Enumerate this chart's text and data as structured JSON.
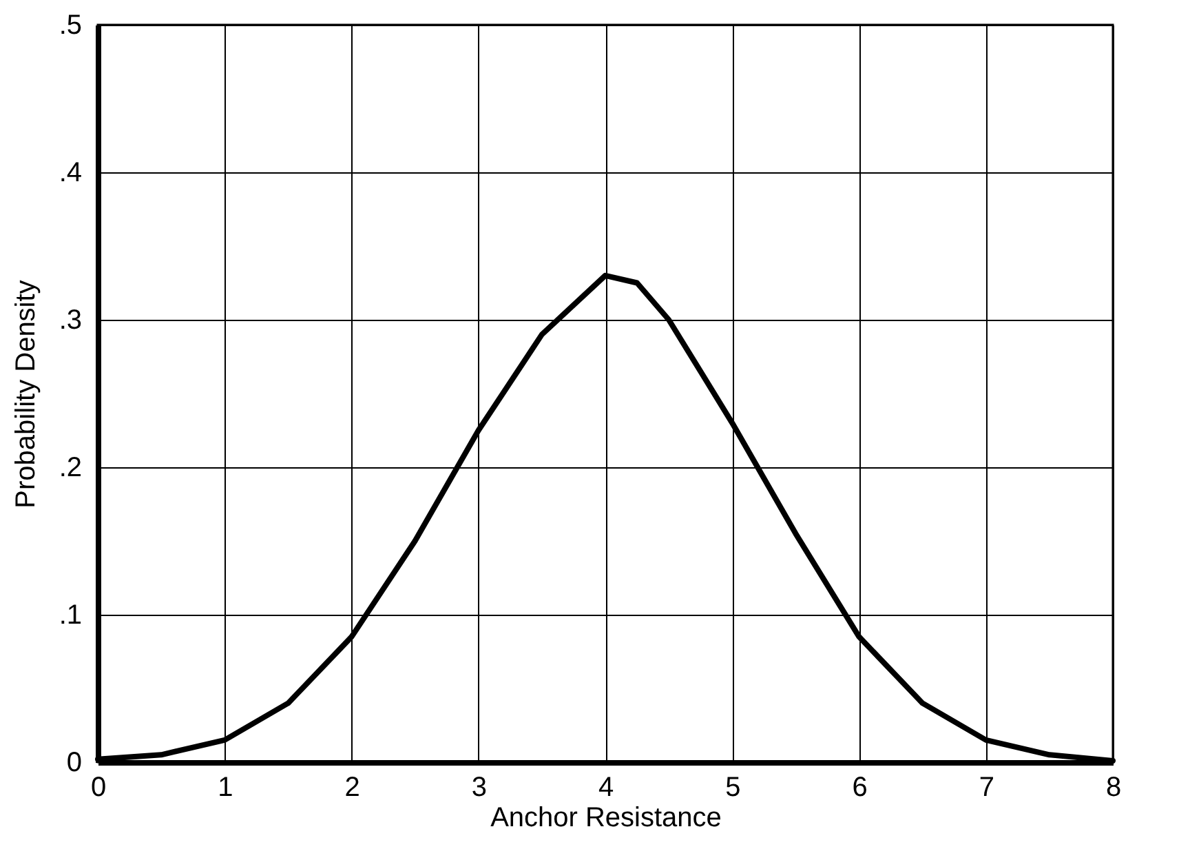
{
  "chart_data": {
    "type": "line",
    "xlabel": "Anchor Resistance",
    "ylabel": "Probability Density",
    "x": [
      0,
      0.5,
      1,
      1.5,
      2,
      2.5,
      3,
      3.5,
      4,
      4.25,
      4.5,
      5,
      5.5,
      6,
      6.5,
      7,
      7.5,
      8
    ],
    "series": [
      {
        "color": "#000000",
        "values": [
          0.002,
          0.005,
          0.015,
          0.04,
          0.085,
          0.15,
          0.225,
          0.29,
          0.33,
          0.325,
          0.3,
          0.23,
          0.155,
          0.085,
          0.04,
          0.015,
          0.005,
          0.001
        ]
      }
    ],
    "xlim": [
      0,
      8
    ],
    "xticks": [
      0,
      1,
      2,
      3,
      4,
      5,
      6,
      7,
      8
    ],
    "ylim": [
      0,
      0.5
    ],
    "yticks": [
      0,
      {
        "value": 0.1,
        "label": ".1"
      },
      {
        "value": 0.2,
        "label": ".2"
      },
      {
        "value": 0.3,
        "label": ".3"
      },
      {
        "value": 0.4,
        "label": ".4"
      },
      {
        "value": 0.5,
        "label": ".5"
      }
    ],
    "grid": true,
    "marker": "none",
    "line_style": "solid"
  }
}
